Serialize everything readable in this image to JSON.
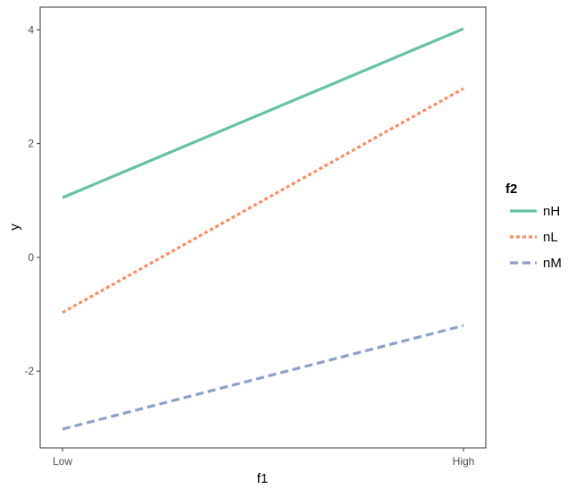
{
  "chart_data": {
    "type": "line",
    "x": [
      "Low",
      "High"
    ],
    "xlabel": "f1",
    "ylabel": "y",
    "ylim": [
      -3.35,
      4.4
    ],
    "yticks": [
      -2,
      0,
      2,
      4
    ],
    "grid": false,
    "legend": {
      "title": "f2",
      "placement": "right"
    },
    "series": [
      {
        "name": "nH",
        "values": [
          1.05,
          4.02
        ],
        "color": "#66c2a5",
        "linestyle": "solid"
      },
      {
        "name": "nL",
        "values": [
          -0.97,
          2.97
        ],
        "color": "#fc8d62",
        "linestyle": "dotted"
      },
      {
        "name": "nM",
        "values": [
          -3.02,
          -1.2
        ],
        "color": "#8da0cb",
        "linestyle": "dashed"
      }
    ]
  }
}
